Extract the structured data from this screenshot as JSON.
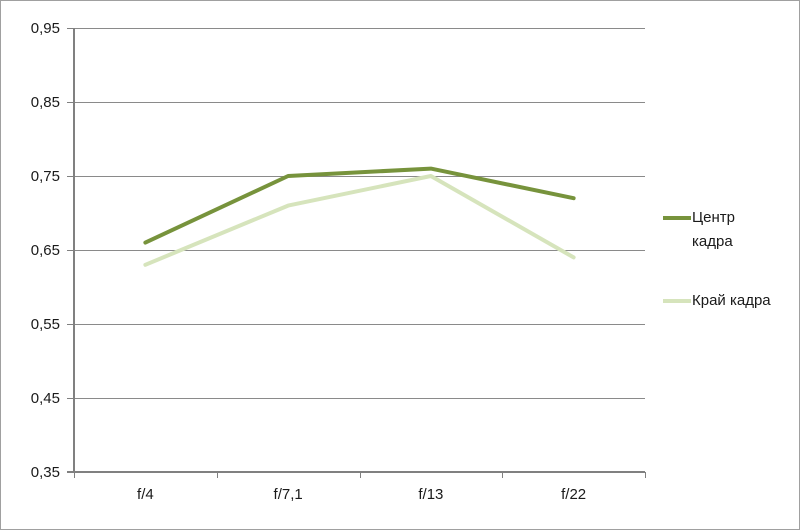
{
  "chart_data": {
    "type": "line",
    "title": "",
    "xlabel": "",
    "ylabel": "",
    "categories": [
      "f/4",
      "f/7,1",
      "f/13",
      "f/22"
    ],
    "series": [
      {
        "name": "Центр кадра",
        "values": [
          0.66,
          0.75,
          0.76,
          0.72
        ],
        "color": "#77933C"
      },
      {
        "name": "Край кадра",
        "values": [
          0.63,
          0.71,
          0.75,
          0.64
        ],
        "color": "#D6E4BC"
      }
    ],
    "ylim": [
      0.35,
      0.95
    ],
    "ytick_step": 0.1,
    "yticks": [
      {
        "value": 0.35,
        "label": "0,35"
      },
      {
        "value": 0.45,
        "label": "0,45"
      },
      {
        "value": 0.55,
        "label": "0,55"
      },
      {
        "value": 0.65,
        "label": "0,65"
      },
      {
        "value": 0.75,
        "label": "0,75"
      },
      {
        "value": 0.85,
        "label": "0,85"
      },
      {
        "value": 0.95,
        "label": "0,95"
      }
    ],
    "grid": true,
    "legend_position": "right"
  },
  "legend": {
    "items": [
      {
        "label": "Центр\nкадра",
        "color": "#77933C"
      },
      {
        "label": "Край кадра",
        "color": "#D6E4BC"
      }
    ]
  },
  "colors": {
    "grid": "#8a8a8a",
    "axis": "#808080",
    "text": "#1a1a1a",
    "border": "#a0a0a0",
    "background": "#ffffff"
  }
}
